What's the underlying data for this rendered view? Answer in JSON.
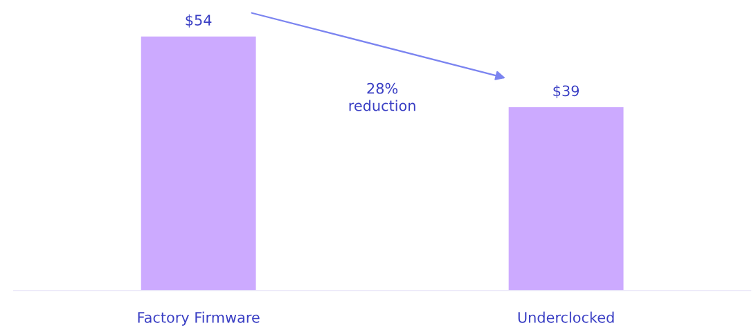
{
  "chart_data": {
    "type": "bar",
    "categories": [
      "Factory Firmware",
      "Underclocked"
    ],
    "values": [
      54,
      39
    ],
    "value_labels": [
      "$54",
      "$39"
    ],
    "color": "#ccaaff",
    "tick_labels": "x",
    "grid": false,
    "legend": false,
    "annotations": [
      "28%\nreduction"
    ]
  }
}
